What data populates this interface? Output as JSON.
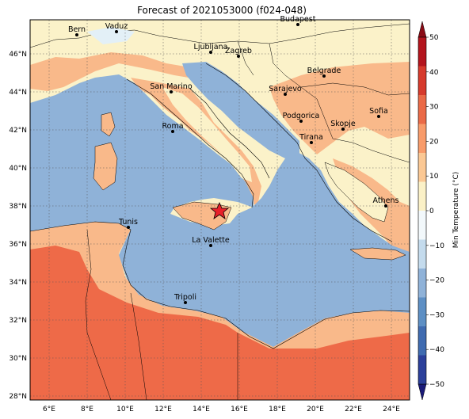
{
  "title": "Forecast of 2021053000 (f024-048)",
  "colorbar": {
    "label": "Min Temperature (°C)",
    "ticks": [
      "−50",
      "−40",
      "−30",
      "−20",
      "−10",
      "0",
      "10",
      "20",
      "30",
      "40",
      "50"
    ],
    "colors": [
      "#1a1a78",
      "#2b3f9a",
      "#3f6bb0",
      "#5d8fc4",
      "#8fb2d8",
      "#c4dbed",
      "#f2f8fb",
      "#fbf1c7",
      "#fbc894",
      "#f89b6a",
      "#ea6a47",
      "#d63a2c",
      "#b3141d",
      "#8a0b16"
    ]
  },
  "map": {
    "lon_labels": [
      "6°E",
      "8°E",
      "10°E",
      "12°E",
      "14°E",
      "16°E",
      "18°E",
      "20°E",
      "22°E",
      "24°E"
    ],
    "lat_labels": [
      "46°N",
      "44°N",
      "42°N",
      "40°N",
      "38°N",
      "36°N",
      "34°N",
      "32°N",
      "30°N",
      "28°N"
    ],
    "cities": [
      {
        "name": "Bern"
      },
      {
        "name": "Vaduz"
      },
      {
        "name": "Budapest"
      },
      {
        "name": "Ljubljana"
      },
      {
        "name": "Zagreb"
      },
      {
        "name": "San Marino"
      },
      {
        "name": "Belgrade"
      },
      {
        "name": "Sarajevo"
      },
      {
        "name": "Roma"
      },
      {
        "name": "Podgorica"
      },
      {
        "name": "Sofia"
      },
      {
        "name": "Skopje"
      },
      {
        "name": "Tirana"
      },
      {
        "name": "Athens"
      },
      {
        "name": "Tunis"
      },
      {
        "name": "La Valette"
      },
      {
        "name": "Tripoli"
      }
    ]
  }
}
